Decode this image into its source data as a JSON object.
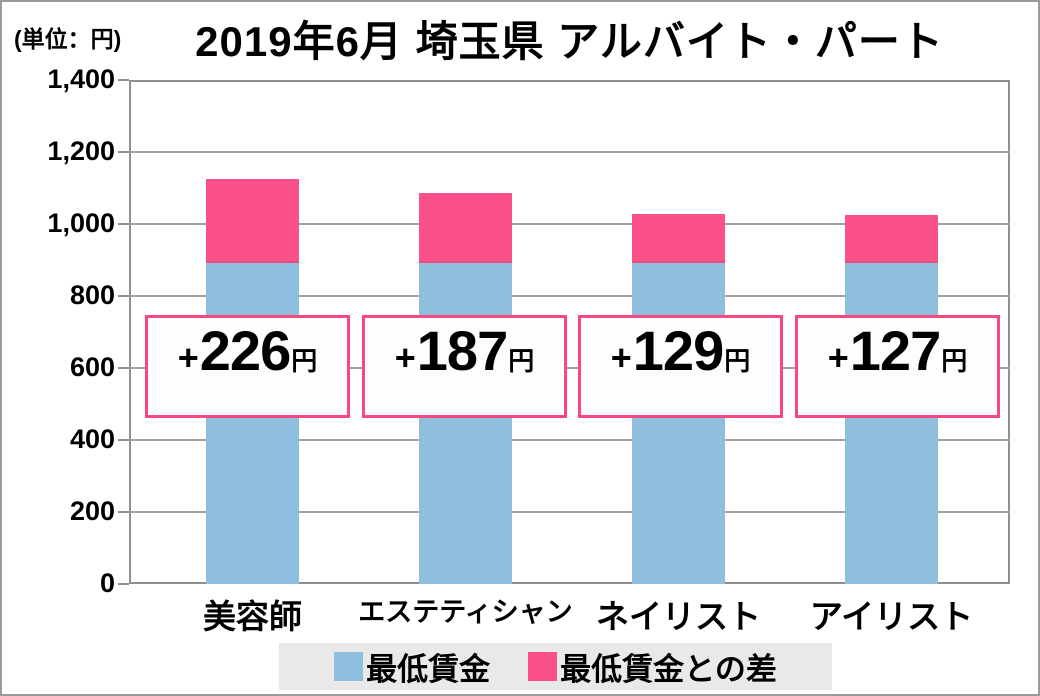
{
  "window": {
    "unit_label": "(単位：円)",
    "title": "2019年6月 埼玉県 アルバイト・パート"
  },
  "chart_data": {
    "type": "bar",
    "stacked": true,
    "title": "2019年6月 埼玉県 アルバイト・パート",
    "unit": "円",
    "categories": [
      "美容師",
      "エステティシャン",
      "ネイリスト",
      "アイリスト"
    ],
    "series": [
      {
        "name": "最低賃金",
        "color": "#90bede",
        "values": [
          898,
          898,
          898,
          898
        ]
      },
      {
        "name": "最低賃金との差",
        "color": "#fb5189",
        "values": [
          226,
          187,
          129,
          127
        ]
      }
    ],
    "totals": [
      1124,
      1085,
      1027,
      1025
    ],
    "diff_labels": [
      {
        "sign": "+",
        "value": "226",
        "unit": "円"
      },
      {
        "sign": "+",
        "value": "187",
        "unit": "円"
      },
      {
        "sign": "+",
        "value": "129",
        "unit": "円"
      },
      {
        "sign": "+",
        "value": "127",
        "unit": "円"
      }
    ],
    "ylim": [
      0,
      1400
    ],
    "ytick_step": 200,
    "ytick_labels": [
      "1,400",
      "1,200",
      "1,000",
      "800",
      "600",
      "400",
      "200",
      "0"
    ],
    "grid": true,
    "legend_position": "bottom-center"
  },
  "legend": {
    "items": [
      {
        "label": "最低賃金",
        "color": "#90bede"
      },
      {
        "label": "最低賃金との差",
        "color": "#fb5189"
      }
    ]
  },
  "colors": {
    "bar_blue": "#90bede",
    "bar_pink": "#fb5189",
    "pink_seam": "#ef4a7d",
    "box_border": "#f8487f",
    "box_bg": "#fdfdfd",
    "grid": "#a3a3a3",
    "axis_border": "#8f8f8f",
    "legend_bg": "#e9e9e9",
    "outer_border": "#9b9b9b",
    "text": "#000000"
  }
}
